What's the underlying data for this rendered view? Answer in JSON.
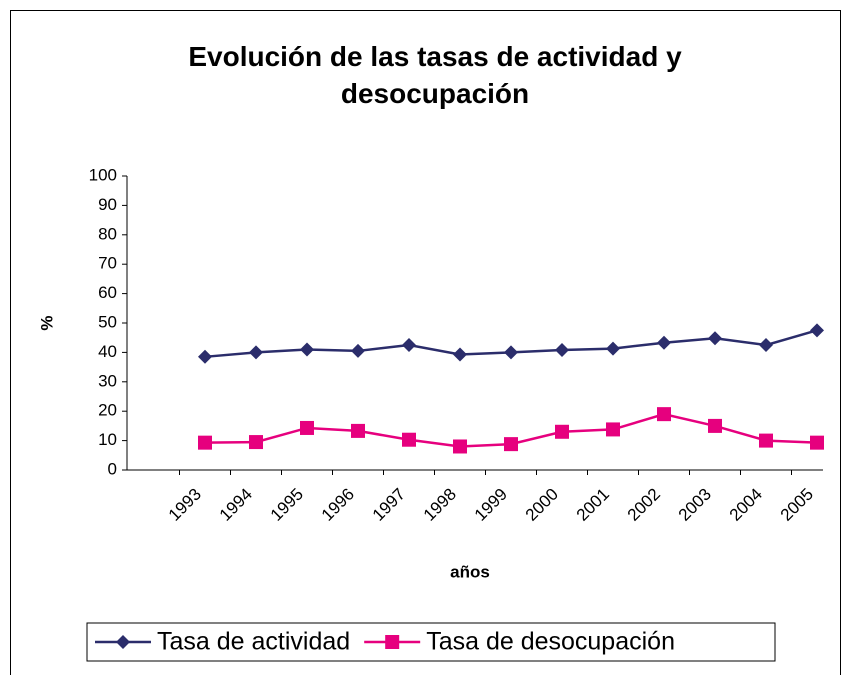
{
  "chart_data": {
    "type": "line",
    "title": "Evolución de las tasas de actividad y desocupación",
    "x_label": "años",
    "y_label": "%",
    "categories": [
      "1993",
      "1994",
      "1995",
      "1996",
      "1997",
      "1998",
      "1999",
      "2000",
      "2001",
      "2002",
      "2003",
      "2004",
      "2005"
    ],
    "series": [
      {
        "name": "Tasa de actividad",
        "color": "#2b2d6b",
        "marker": "diamond",
        "values": [
          38.5,
          40,
          41,
          40.5,
          42.5,
          39.3,
          40,
          40.8,
          41.3,
          43.3,
          44.8,
          42.5,
          47.5
        ]
      },
      {
        "name": "Tasa de desocupación",
        "color": "#e6007e",
        "marker": "square",
        "values": [
          9.3,
          9.5,
          14.3,
          13.3,
          10.3,
          8,
          8.8,
          13,
          13.8,
          19,
          15,
          10,
          9.3
        ]
      }
    ],
    "ylim": [
      0,
      100
    ],
    "yticks": [
      0,
      10,
      20,
      30,
      40,
      50,
      60,
      70,
      80,
      90,
      100
    ],
    "legend": "bottom"
  }
}
